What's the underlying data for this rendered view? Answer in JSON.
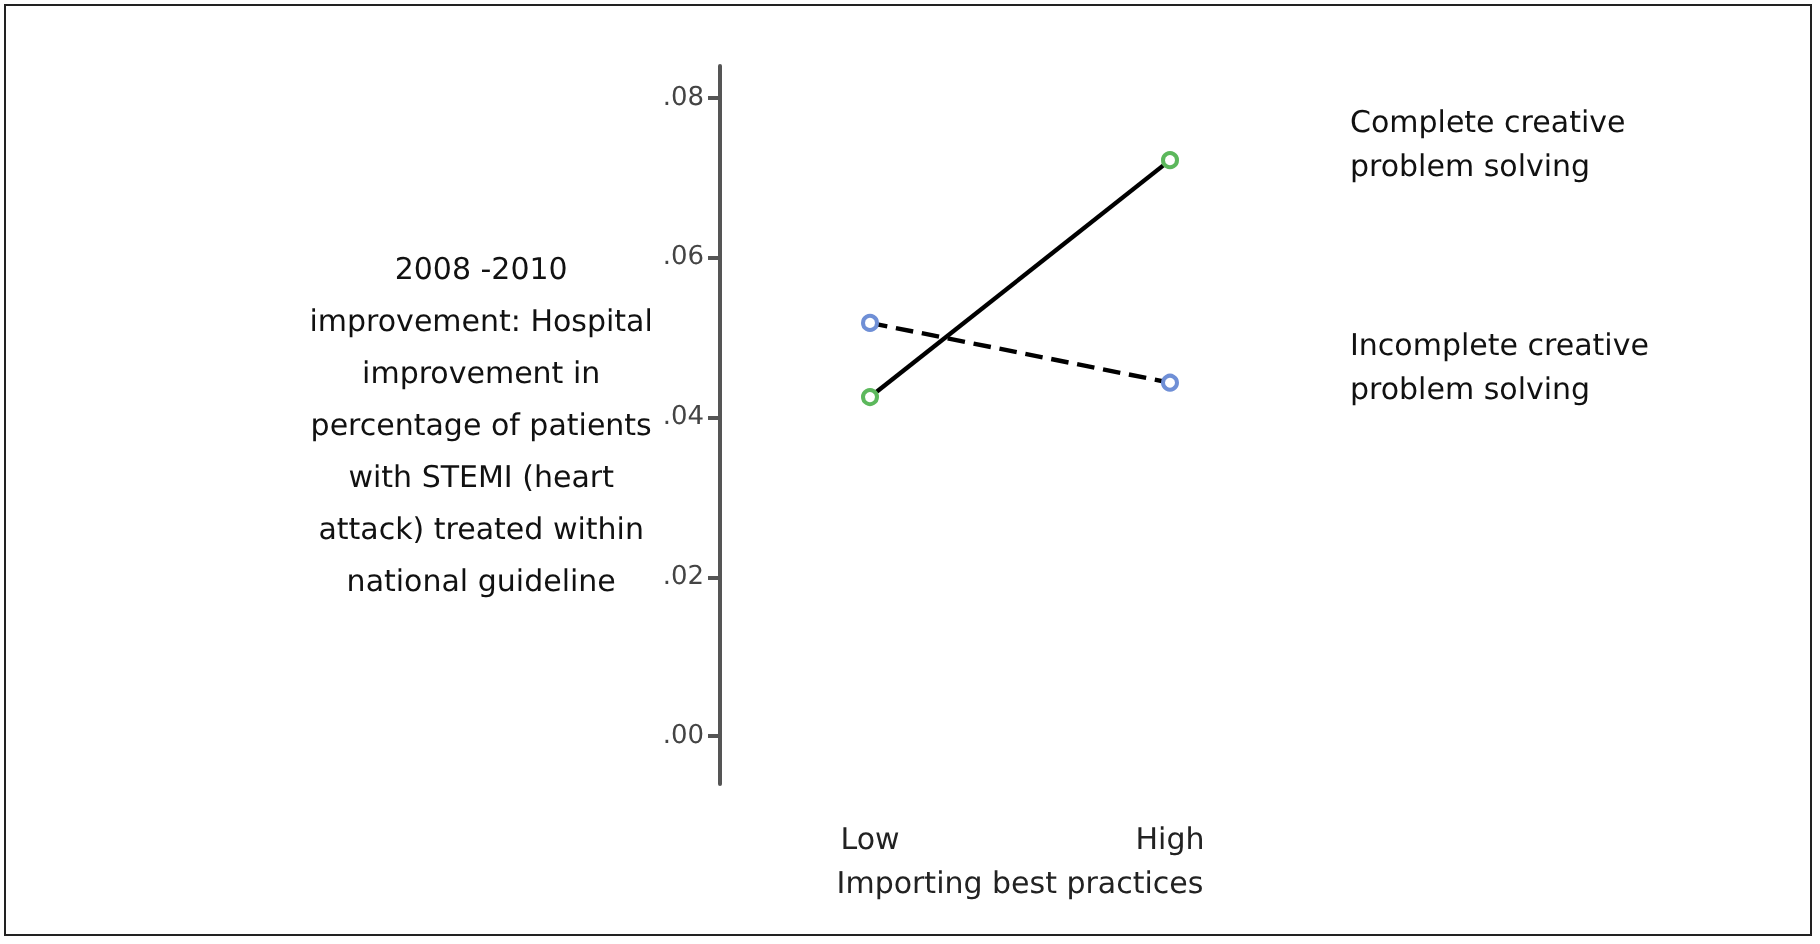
{
  "chart_data": {
    "type": "line",
    "xlabel": "Importing best practices",
    "ylabel": "2008 -2010 improvement: Hospital improvement in percentage of patients with STEMI (heart attack) treated within national guideline",
    "categories": [
      "Low",
      "High"
    ],
    "series": [
      {
        "name": "Complete creative problem solving",
        "color": "#000000",
        "colors": [
          "#5cb85c",
          "#5cb85c"
        ],
        "line_style": "solid",
        "values": [
          0.0425,
          0.0722
        ]
      },
      {
        "name": "Incomplete creative problem solving",
        "color": "#000000",
        "colors": [
          "#6f8fd6",
          "#6f8fd6"
        ],
        "line_style": "dashed",
        "values": [
          0.0518,
          0.0443
        ]
      }
    ],
    "ylim": [
      -0.006,
      0.084
    ],
    "yticks": [
      {
        "value": 0,
        "label": ".00"
      },
      {
        "value": 0.02,
        "label": ".02"
      },
      {
        "value": 0.04,
        "label": ".04"
      },
      {
        "value": 0.06,
        "label": ".06"
      },
      {
        "value": 0.08,
        "label": ".08"
      }
    ],
    "grid": false,
    "legend": false,
    "marker": "circle"
  }
}
